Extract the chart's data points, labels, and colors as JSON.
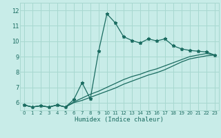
{
  "xlabel": "Humidex (Indice chaleur)",
  "xlim": [
    -0.5,
    23.5
  ],
  "ylim": [
    5.5,
    12.5
  ],
  "xticks": [
    0,
    1,
    2,
    3,
    4,
    5,
    6,
    7,
    8,
    9,
    10,
    11,
    12,
    13,
    14,
    15,
    16,
    17,
    18,
    19,
    20,
    21,
    22,
    23
  ],
  "yticks": [
    6,
    7,
    8,
    9,
    10,
    11,
    12
  ],
  "background_color": "#c8ece8",
  "grid_color": "#a8d8d0",
  "line_color": "#1a6b60",
  "line1_x": [
    0,
    1,
    2,
    3,
    4,
    5,
    6,
    7,
    8,
    9,
    10,
    11,
    12,
    13,
    14,
    15,
    16,
    17,
    18,
    19,
    20,
    21,
    22,
    23
  ],
  "line1_y": [
    5.85,
    5.72,
    5.8,
    5.72,
    5.85,
    5.72,
    6.2,
    7.3,
    6.25,
    9.35,
    11.78,
    11.2,
    10.3,
    10.05,
    9.88,
    10.15,
    10.02,
    10.15,
    9.7,
    9.5,
    9.4,
    9.35,
    9.3,
    9.1
  ],
  "line2_x": [
    0,
    1,
    2,
    3,
    4,
    5,
    6,
    7,
    8,
    9,
    10,
    11,
    12,
    13,
    14,
    15,
    16,
    17,
    18,
    19,
    20,
    21,
    22,
    23
  ],
  "line2_y": [
    5.85,
    5.72,
    5.8,
    5.72,
    5.85,
    5.72,
    6.05,
    6.3,
    6.55,
    6.75,
    7.0,
    7.25,
    7.5,
    7.7,
    7.85,
    8.05,
    8.2,
    8.4,
    8.6,
    8.8,
    9.0,
    9.1,
    9.2,
    9.1
  ],
  "line3_x": [
    0,
    1,
    2,
    3,
    4,
    5,
    6,
    7,
    8,
    9,
    10,
    11,
    12,
    13,
    14,
    15,
    16,
    17,
    18,
    19,
    20,
    21,
    22,
    23
  ],
  "line3_y": [
    5.85,
    5.72,
    5.8,
    5.72,
    5.85,
    5.72,
    6.0,
    6.15,
    6.35,
    6.55,
    6.75,
    6.95,
    7.2,
    7.4,
    7.6,
    7.8,
    7.95,
    8.15,
    8.4,
    8.65,
    8.85,
    8.95,
    9.05,
    9.1
  ]
}
